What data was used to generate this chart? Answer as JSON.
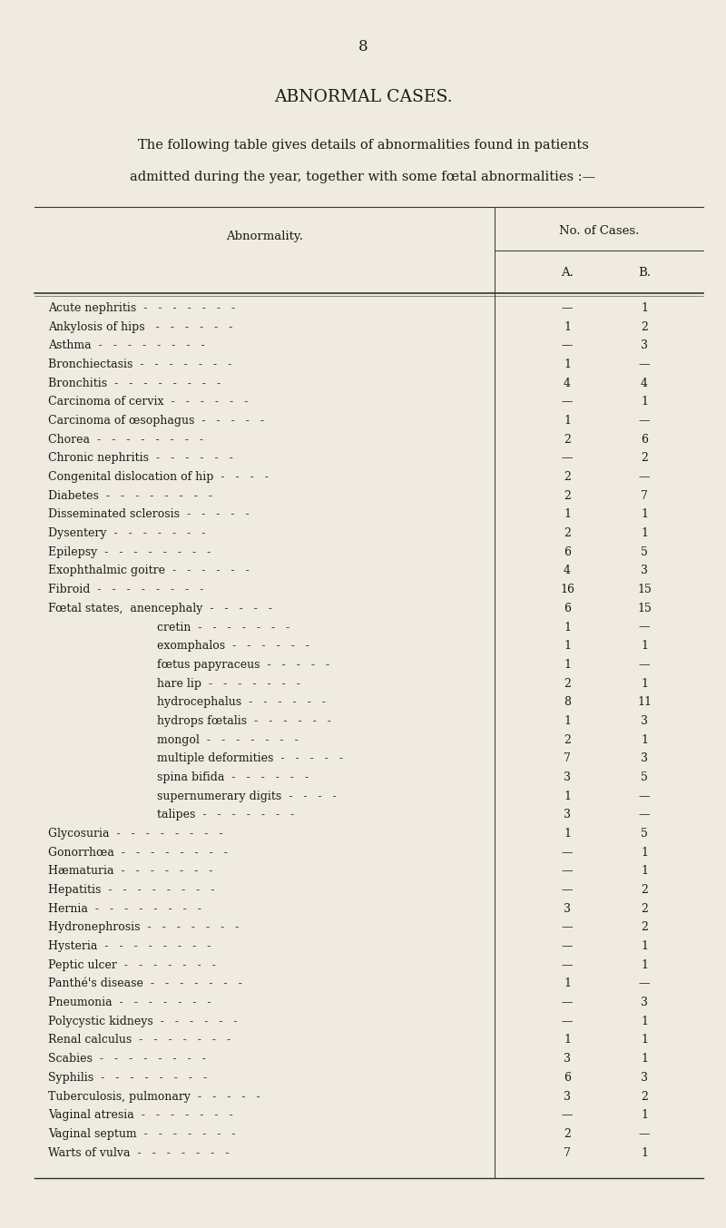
{
  "page_number": "8",
  "title": "ABNORMAL CASES.",
  "subtitle_line1": "The following table gives details of abnormalities found in patients",
  "subtitle_line2": "admitted during the year, together with some fœtal abnormalities :—",
  "col_header_main": "No. of Cases.",
  "col_header_left": "Abnormality.",
  "col_header_A": "A.",
  "col_header_B": "B.",
  "rows": [
    {
      "label": "Acute nephritis  -   -   -   -   -   -   -",
      "indent": false,
      "A": "—",
      "B": "1"
    },
    {
      "label": "Ankylosis of hips   -   -   -   -   -   -",
      "indent": false,
      "A": "1",
      "B": "2"
    },
    {
      "label": "Asthma  -   -   -   -   -   -   -   -",
      "indent": false,
      "A": "—",
      "B": "3"
    },
    {
      "label": "Bronchiectasis  -   -   -   -   -   -   -",
      "indent": false,
      "A": "1",
      "B": "—"
    },
    {
      "label": "Bronchitis  -   -   -   -   -   -   -   -",
      "indent": false,
      "A": "4",
      "B": "4"
    },
    {
      "label": "Carcinoma of cervix  -   -   -   -   -   -",
      "indent": false,
      "A": "—",
      "B": "1"
    },
    {
      "label": "Carcinoma of œsophagus  -   -   -   -   -",
      "indent": false,
      "A": "1",
      "B": "—"
    },
    {
      "label": "Chorea  -   -   -   -   -   -   -   -",
      "indent": false,
      "A": "2",
      "B": "6"
    },
    {
      "label": "Chronic nephritis  -   -   -   -   -   -",
      "indent": false,
      "A": "—",
      "B": "2"
    },
    {
      "label": "Congenital dislocation of hip  -   -   -   -",
      "indent": false,
      "A": "2",
      "B": "—"
    },
    {
      "label": "Diabetes  -   -   -   -   -   -   -   -",
      "indent": false,
      "A": "2",
      "B": "7"
    },
    {
      "label": "Disseminated sclerosis  -   -   -   -   -",
      "indent": false,
      "A": "1",
      "B": "1"
    },
    {
      "label": "Dysentery  -   -   -   -   -   -   -",
      "indent": false,
      "A": "2",
      "B": "1"
    },
    {
      "label": "Epilepsy  -   -   -   -   -   -   -   -",
      "indent": false,
      "A": "6",
      "B": "5"
    },
    {
      "label": "Exophthalmic goitre  -   -   -   -   -   -",
      "indent": false,
      "A": "4",
      "B": "3"
    },
    {
      "label": "Fibroid  -   -   -   -   -   -   -   -",
      "indent": false,
      "A": "16",
      "B": "15"
    },
    {
      "label": "Fœtal states,  anencephaly  -   -   -   -   -",
      "indent": false,
      "A": "6",
      "B": "15"
    },
    {
      "label": "cretin  -   -   -   -   -   -   -",
      "indent": true,
      "A": "1",
      "B": "—"
    },
    {
      "label": "exomphalos  -   -   -   -   -   -",
      "indent": true,
      "A": "1",
      "B": "1"
    },
    {
      "label": "fœtus papyraceus  -   -   -   -   -",
      "indent": true,
      "A": "1",
      "B": "—"
    },
    {
      "label": "hare lip  -   -   -   -   -   -   -",
      "indent": true,
      "A": "2",
      "B": "1"
    },
    {
      "label": "hydrocephalus  -   -   -   -   -   -",
      "indent": true,
      "A": "8",
      "B": "11"
    },
    {
      "label": "hydrops fœtalis  -   -   -   -   -   -",
      "indent": true,
      "A": "1",
      "B": "3"
    },
    {
      "label": "mongol  -   -   -   -   -   -   -",
      "indent": true,
      "A": "2",
      "B": "1"
    },
    {
      "label": "multiple deformities  -   -   -   -   -",
      "indent": true,
      "A": "7",
      "B": "3"
    },
    {
      "label": "spina bifida  -   -   -   -   -   -",
      "indent": true,
      "A": "3",
      "B": "5"
    },
    {
      "label": "supernumerary digits  -   -   -   -",
      "indent": true,
      "A": "1",
      "B": "—"
    },
    {
      "label": "talipes  -   -   -   -   -   -   -",
      "indent": true,
      "A": "3",
      "B": "—"
    },
    {
      "label": "Glycosuria  -   -   -   -   -   -   -   -",
      "indent": false,
      "A": "1",
      "B": "5"
    },
    {
      "label": "Gonorrhœa  -   -   -   -   -   -   -   -",
      "indent": false,
      "A": "—",
      "B": "1"
    },
    {
      "label": "Hæmaturia  -   -   -   -   -   -   -",
      "indent": false,
      "A": "—",
      "B": "1"
    },
    {
      "label": "Hepatitis  -   -   -   -   -   -   -   -",
      "indent": false,
      "A": "—",
      "B": "2"
    },
    {
      "label": "Hernia  -   -   -   -   -   -   -   -",
      "indent": false,
      "A": "3",
      "B": "2"
    },
    {
      "label": "Hydronephrosis  -   -   -   -   -   -   -",
      "indent": false,
      "A": "—",
      "B": "2"
    },
    {
      "label": "Hysteria  -   -   -   -   -   -   -   -",
      "indent": false,
      "A": "—",
      "B": "1"
    },
    {
      "label": "Peptic ulcer  -   -   -   -   -   -   -",
      "indent": false,
      "A": "—",
      "B": "1"
    },
    {
      "label": "Panthé's disease  -   -   -   -   -   -   -",
      "indent": false,
      "A": "1",
      "B": "—"
    },
    {
      "label": "Pneumonia  -   -   -   -   -   -   -",
      "indent": false,
      "A": "—",
      "B": "3"
    },
    {
      "label": "Polycystic kidneys  -   -   -   -   -   -",
      "indent": false,
      "A": "—",
      "B": "1"
    },
    {
      "label": "Renal calculus  -   -   -   -   -   -   -",
      "indent": false,
      "A": "1",
      "B": "1"
    },
    {
      "label": "Scabies  -   -   -   -   -   -   -   -",
      "indent": false,
      "A": "3",
      "B": "1"
    },
    {
      "label": "Syphilis  -   -   -   -   -   -   -   -",
      "indent": false,
      "A": "6",
      "B": "3"
    },
    {
      "label": "Tuberculosis, pulmonary  -   -   -   -   -",
      "indent": false,
      "A": "3",
      "B": "2"
    },
    {
      "label": "Vaginal atresia  -   -   -   -   -   -   -",
      "indent": false,
      "A": "—",
      "B": "1"
    },
    {
      "label": "Vaginal septum  -   -   -   -   -   -   -",
      "indent": false,
      "A": "2",
      "B": "—"
    },
    {
      "label": "Warts of vulva  -   -   -   -   -   -   -",
      "indent": false,
      "A": "7",
      "B": "1"
    }
  ],
  "bg_color": "#f0ebe0",
  "text_color": "#1a1a1a",
  "line_color": "#333333",
  "font_size_body": 9.0,
  "font_size_header": 9.5,
  "font_size_title": 13.5,
  "font_size_page": 12.0,
  "font_size_subtitle": 10.5
}
